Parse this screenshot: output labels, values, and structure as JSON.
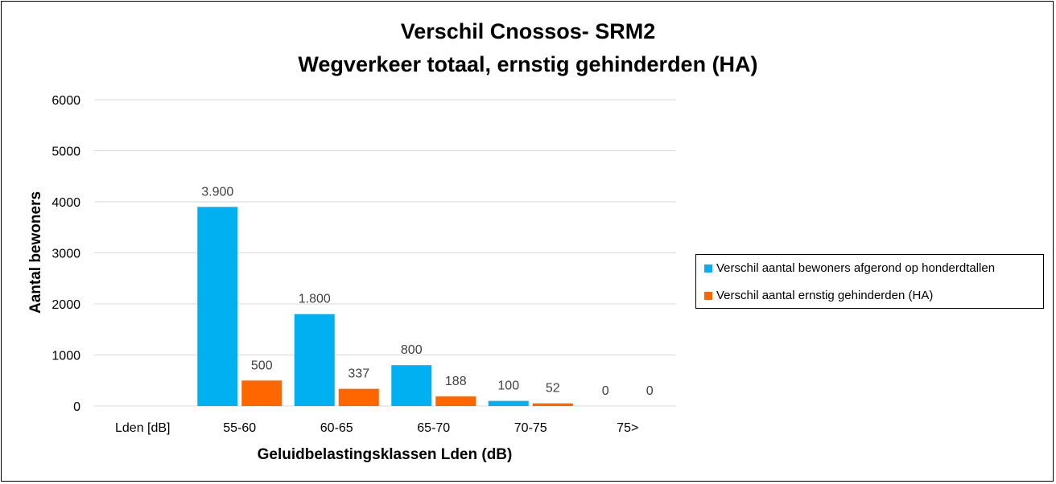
{
  "chart_data": {
    "type": "bar",
    "title_lines": [
      "Verschil Cnossos- SRM2",
      "Wegverkeer totaal, ernstig gehinderden (HA)"
    ],
    "xlabel": "Geluidbelastingsklassen Lden (dB)",
    "ylabel": "Aantal bewoners",
    "ylim": [
      0,
      6000
    ],
    "yticks": [
      0,
      1000,
      2000,
      3000,
      4000,
      5000,
      6000
    ],
    "categories": [
      "Lden [dB]",
      "55-60",
      "60-65",
      "65-70",
      "70-75",
      "75>"
    ],
    "series": [
      {
        "name": "Verschil aantal bewoners afgerond op honderdtallen",
        "color": "#00B0F0",
        "values": [
          null,
          3900,
          1800,
          800,
          100,
          0
        ],
        "labels": [
          "",
          "3.900",
          "1.800",
          "800",
          "100",
          "0"
        ]
      },
      {
        "name": "Verschil aantal ernstig gehinderden (HA)",
        "color": "#FF6600",
        "values": [
          null,
          500,
          337,
          188,
          52,
          0
        ],
        "labels": [
          "",
          "500",
          "337",
          "188",
          "52",
          "0"
        ]
      }
    ],
    "grid": true,
    "legend_position": "right"
  }
}
